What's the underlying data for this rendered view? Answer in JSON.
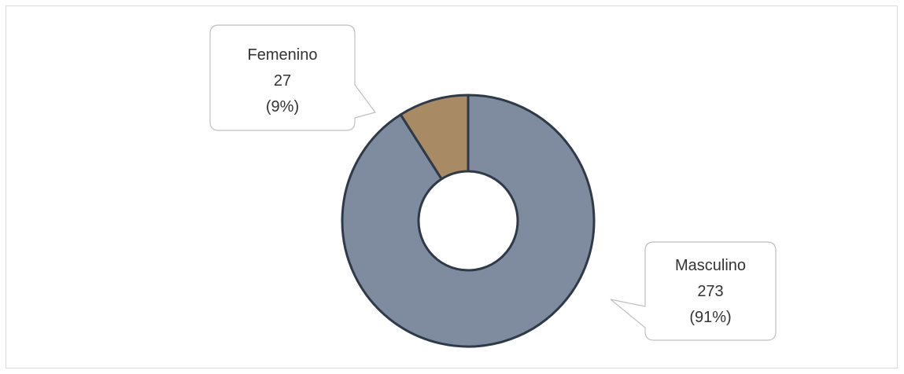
{
  "chart_data": {
    "type": "pie",
    "variant": "doughnut",
    "slices": [
      {
        "label": "Masculino",
        "value": 273,
        "percent": "91%",
        "value_text": "273",
        "percent_text": "(91%)",
        "color": "#7f8b9f"
      },
      {
        "label": "Femenino",
        "value": 27,
        "percent": "9%",
        "value_text": "27",
        "percent_text": "(9%)",
        "color": "#a88b64"
      }
    ],
    "slice_border_color": "#2e3a48",
    "legend": "none",
    "data_labels": "callouts"
  }
}
